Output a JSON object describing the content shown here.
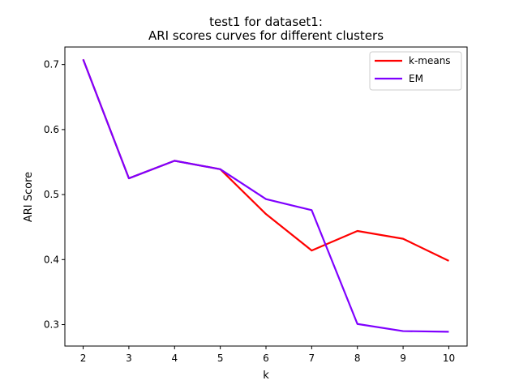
{
  "chart_data": {
    "type": "line",
    "title": [
      "test1 for dataset1:",
      "ARI scores curves for different clusters"
    ],
    "xlabel": "k",
    "ylabel": "ARI Score",
    "x": [
      2,
      3,
      4,
      5,
      6,
      7,
      8,
      9,
      10
    ],
    "xticks": [
      "2",
      "3",
      "4",
      "5",
      "6",
      "7",
      "8",
      "9",
      "10"
    ],
    "yticks": [
      0.3,
      0.4,
      0.5,
      0.6,
      0.7
    ],
    "ytick_labels": [
      "0.3",
      "0.4",
      "0.5",
      "0.6",
      "0.7"
    ],
    "xlim": [
      1.6,
      10.4
    ],
    "ylim": [
      0.267,
      0.727
    ],
    "grid": false,
    "legend_position": "top-right",
    "series": [
      {
        "name": "k-means",
        "color": "#ff0000",
        "values": [
          0.708,
          0.525,
          0.552,
          0.539,
          0.47,
          0.414,
          0.444,
          0.432,
          0.398
        ]
      },
      {
        "name": "EM",
        "color": "#7f00ff",
        "values": [
          0.708,
          0.525,
          0.552,
          0.539,
          0.493,
          0.476,
          0.301,
          0.29,
          0.289
        ]
      }
    ]
  }
}
